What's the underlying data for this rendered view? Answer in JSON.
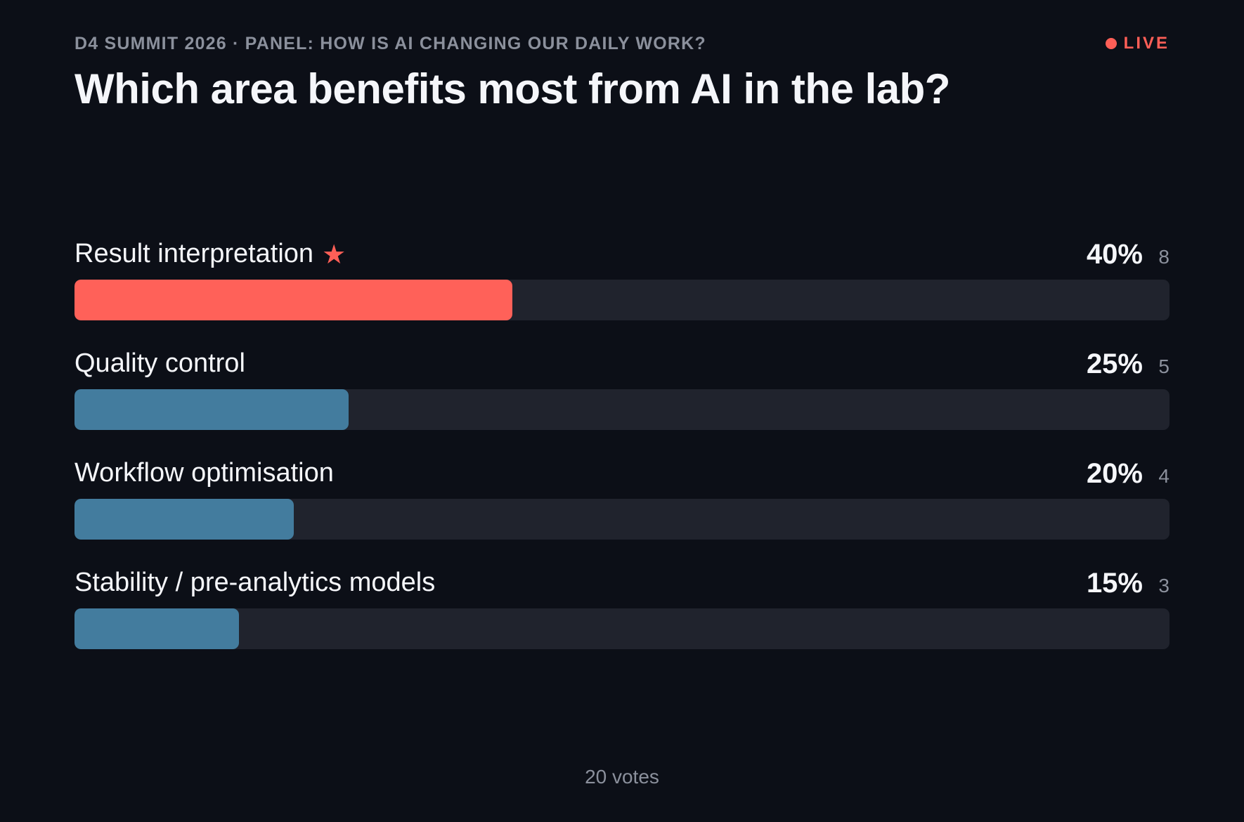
{
  "header": {
    "eyebrow": "D4 SUMMIT 2026 · PANEL: HOW IS AI CHANGING OUR DAILY WORK?",
    "live_label": "LIVE",
    "question": "Which area benefits most from AI in the lab?"
  },
  "colors": {
    "winner": "#ff6159",
    "default": "#437c9e",
    "live": "#ff5f57"
  },
  "options": [
    {
      "label": "Result interpretation",
      "percent_label": "40%",
      "percent": 40,
      "count": "8",
      "winner": true,
      "icon": "star-icon"
    },
    {
      "label": "Quality control",
      "percent_label": "25%",
      "percent": 25,
      "count": "5",
      "winner": false
    },
    {
      "label": "Workflow optimisation",
      "percent_label": "20%",
      "percent": 20,
      "count": "4",
      "winner": false
    },
    {
      "label": "Stability / pre-analytics models",
      "percent_label": "15%",
      "percent": 15,
      "count": "3",
      "winner": false
    }
  ],
  "footer": {
    "votes": "20 votes"
  }
}
